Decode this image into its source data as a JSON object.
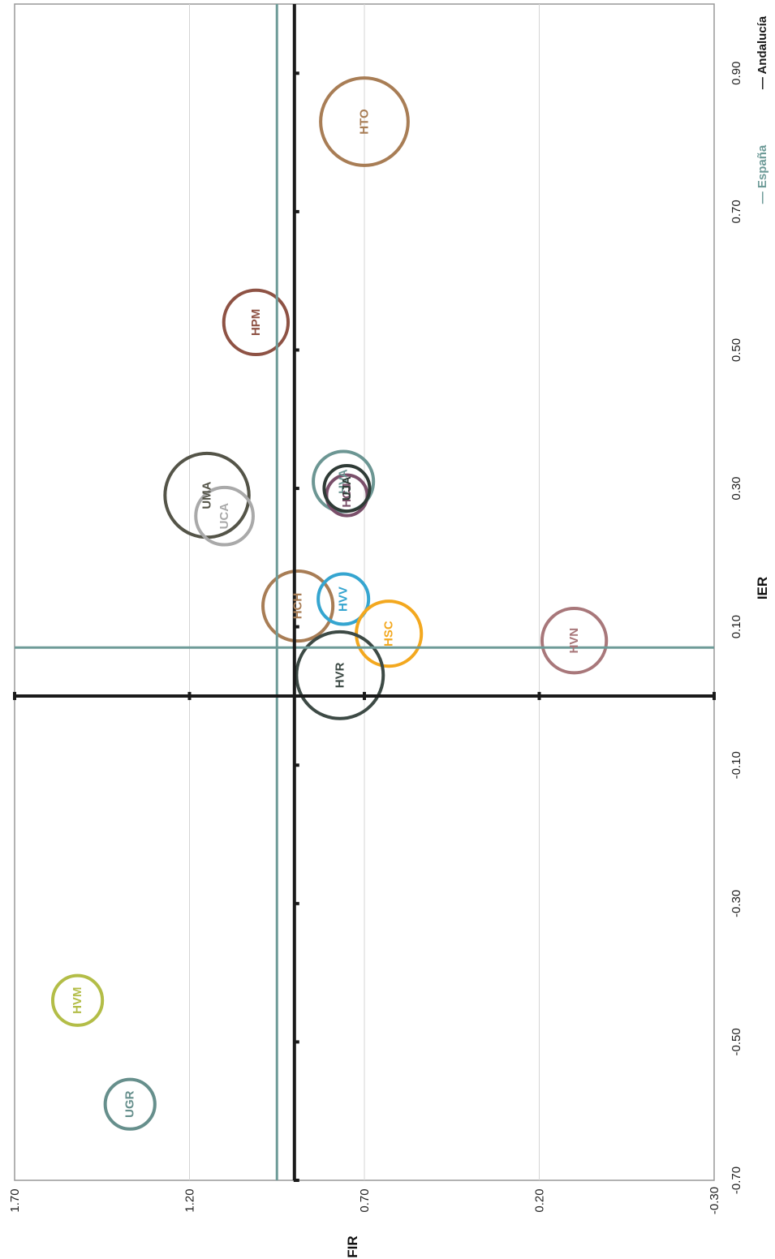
{
  "chart_data": {
    "type": "bubble",
    "xlabel": "FIR",
    "ylabel": "IER",
    "xlim": [
      -0.3,
      1.7
    ],
    "ylim": [
      -0.7,
      1.0
    ],
    "x_ticks": [
      "1.70",
      "1.20",
      "0.70",
      "0.20",
      "-0.30"
    ],
    "y_ticks": [
      "-0.70",
      "-0.50",
      "-0.30",
      "-0.10",
      "0.10",
      "0.30",
      "0.50",
      "0.70",
      "0.90"
    ],
    "grid": true,
    "legend_position": "right",
    "reference_lines": [
      {
        "name": "España",
        "x": 0.95,
        "y": 0.07,
        "color": "#6e9b98"
      },
      {
        "name": "Andalucía",
        "x": 0.9,
        "y": 0.0,
        "color": "#1a1a1a"
      }
    ],
    "series": [
      {
        "label": "HTO",
        "x": 0.7,
        "y": 0.83,
        "r": 0.125,
        "color": "#a87d55"
      },
      {
        "label": "HPM",
        "x": 1.01,
        "y": 0.54,
        "r": 0.092,
        "color": "#8e5244"
      },
      {
        "label": "UMA",
        "x": 1.15,
        "y": 0.29,
        "r": 0.12,
        "color": "#545448"
      },
      {
        "label": "UCA",
        "x": 1.1,
        "y": 0.26,
        "r": 0.082,
        "color": "#a9a9a9"
      },
      {
        "label": "HVA",
        "x": 0.76,
        "y": 0.31,
        "r": 0.086,
        "color": "#6c9693"
      },
      {
        "label": "HCJ",
        "x": 0.75,
        "y": 0.29,
        "r": 0.058,
        "color": "#7a4f6a"
      },
      {
        "label": "UJA",
        "x": 0.75,
        "y": 0.3,
        "r": 0.065,
        "color": "#2f3b36"
      },
      {
        "label": "HCH",
        "x": 0.89,
        "y": 0.13,
        "r": 0.1,
        "color": "#a87d55"
      },
      {
        "label": "HVV",
        "x": 0.76,
        "y": 0.14,
        "r": 0.072,
        "color": "#35a5d0"
      },
      {
        "label": "HSC",
        "x": 0.63,
        "y": 0.09,
        "r": 0.093,
        "color": "#f3a81f"
      },
      {
        "label": "HVR",
        "x": 0.77,
        "y": 0.03,
        "r": 0.124,
        "color": "#3d4a45"
      },
      {
        "label": "HVN",
        "x": 0.1,
        "y": 0.08,
        "r": 0.092,
        "color": "#a8777a"
      },
      {
        "label": "HVM",
        "x": 1.52,
        "y": -0.44,
        "r": 0.071,
        "color": "#b3bd47"
      },
      {
        "label": "UGR",
        "x": 1.37,
        "y": -0.59,
        "r": 0.071,
        "color": "#668f8c"
      }
    ]
  }
}
